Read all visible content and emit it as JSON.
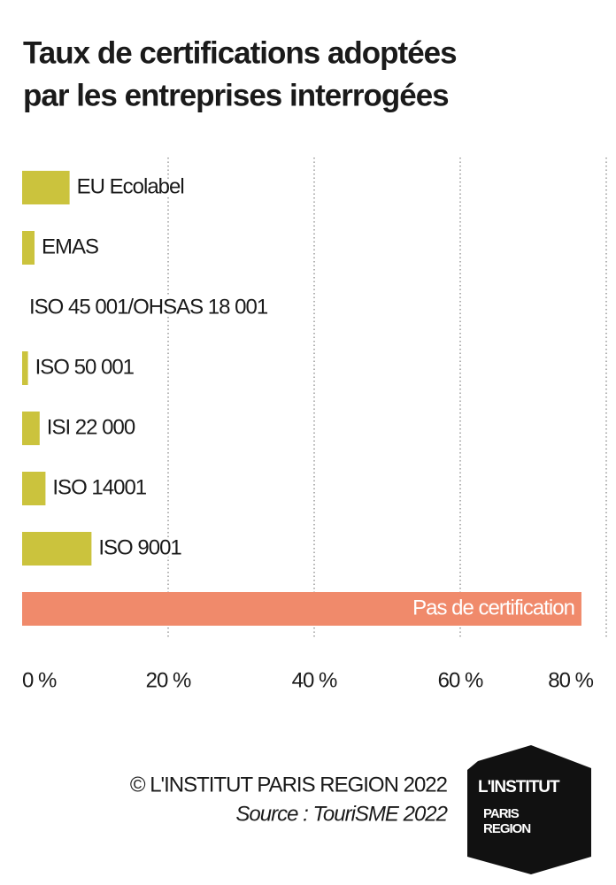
{
  "chart_data": {
    "type": "hbar",
    "title": [
      "Taux de certifications adoptées",
      "par les entreprises interrogées"
    ],
    "categories": [
      "EU Ecolabel",
      "EMAS",
      "ISO 45 001/OHSAS 18 001",
      "ISO 50 001",
      "ISI 22 000",
      "ISO 14001",
      "ISO 9001",
      "Pas de certification"
    ],
    "values": [
      6.5,
      1.7,
      0,
      0.8,
      2.4,
      3.2,
      9.5,
      76.6
    ],
    "colors": [
      "#cbc33d",
      "#cbc33d",
      "#cbc33d",
      "#cbc33d",
      "#cbc33d",
      "#cbc33d",
      "#cbc33d",
      "#f08a6b"
    ],
    "xlim": [
      0,
      80
    ],
    "xticks": [
      {
        "value": 0,
        "label": "0 %"
      },
      {
        "value": 20,
        "label": "20 %"
      },
      {
        "value": 40,
        "label": "40 %"
      },
      {
        "value": 60,
        "label": "60 %"
      },
      {
        "value": 80,
        "label": "80 %"
      }
    ],
    "grid": true
  },
  "footer": {
    "credit": "© L'INSTITUT PARIS REGION 2022",
    "source": "Source : TouriSME 2022",
    "logo": [
      "L'INSTITUT",
      "PARIS",
      "REGION"
    ]
  }
}
